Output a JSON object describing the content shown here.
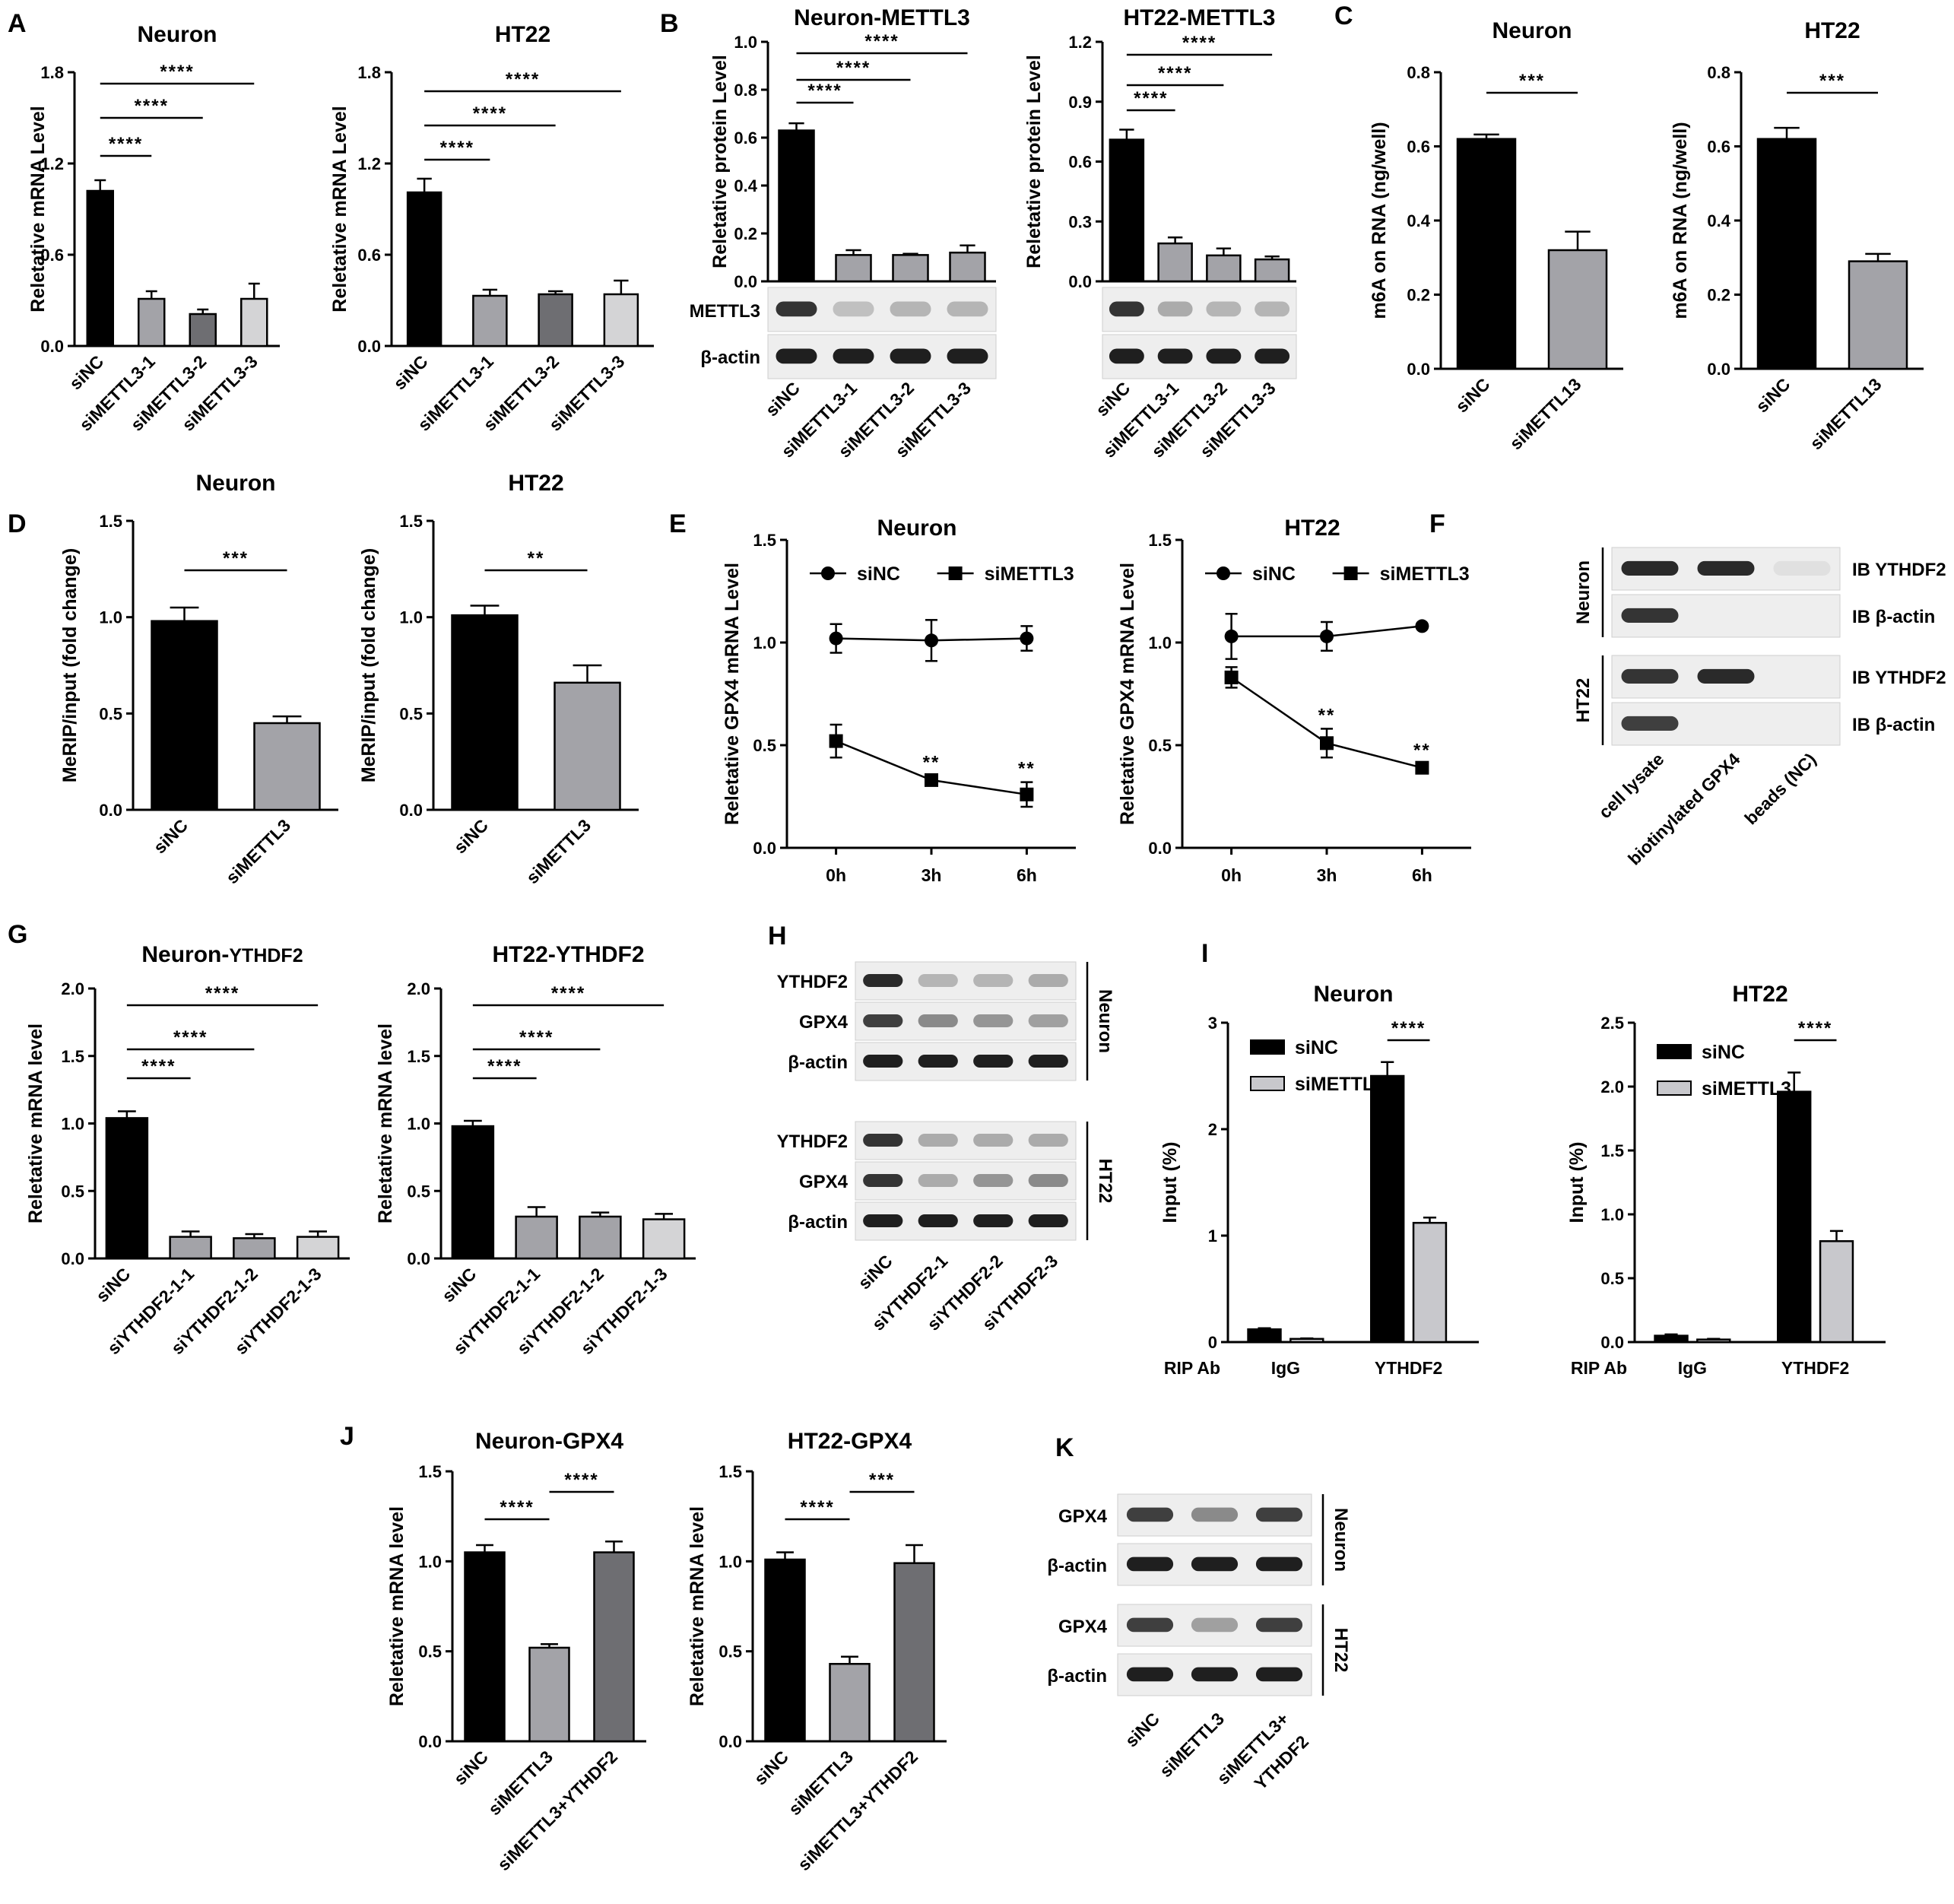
{
  "panel_labels": [
    "A",
    "B",
    "C",
    "D",
    "E",
    "F",
    "G",
    "H",
    "I",
    "J",
    "K"
  ],
  "colors": {
    "black": "#000000",
    "gray1": "#a3a3a8",
    "gray2": "#6e6e72",
    "gray3": "#d4d4d6",
    "gray_light": "#c8c8cc"
  },
  "chart_data": [
    {
      "id": "A1",
      "type": "bar",
      "title": "Neuron",
      "ylabel": "Reletative mRNA Level",
      "ylim": [
        0,
        1.8
      ],
      "yticks": [
        "0.0",
        "0.6",
        "1.2",
        "1.8"
      ],
      "categories": [
        "siNC",
        "siMETTL3-1",
        "siMETTL3-2",
        "siMETTL3-3"
      ],
      "values": [
        1.02,
        0.31,
        0.21,
        0.31
      ],
      "errors": [
        0.07,
        0.05,
        0.03,
        0.1
      ],
      "significance": [
        {
          "from": 0,
          "to": 1,
          "label": "****"
        },
        {
          "from": 0,
          "to": 2,
          "label": "****"
        },
        {
          "from": 0,
          "to": 3,
          "label": "****"
        }
      ]
    },
    {
      "id": "A2",
      "type": "bar",
      "title": "HT22",
      "ylabel": "Reletative mRNA Level",
      "ylim": [
        0,
        1.8
      ],
      "yticks": [
        "0.0",
        "0.6",
        "1.2",
        "1.8"
      ],
      "categories": [
        "siNC",
        "siMETTL3-1",
        "siMETTL3-2",
        "siMETTL3-3"
      ],
      "values": [
        1.01,
        0.33,
        0.34,
        0.34
      ],
      "errors": [
        0.09,
        0.04,
        0.02,
        0.09
      ],
      "significance": [
        {
          "from": 0,
          "to": 1,
          "label": "****"
        },
        {
          "from": 0,
          "to": 2,
          "label": "****"
        },
        {
          "from": 0,
          "to": 3,
          "label": "****"
        }
      ]
    },
    {
      "id": "B1",
      "type": "bar",
      "title": "Neuron-METTL3",
      "ylabel": "Reletative protein Level",
      "ylim": [
        0,
        1.0
      ],
      "yticks": [
        "0.0",
        "0.2",
        "0.4",
        "0.6",
        "0.8",
        "1.0"
      ],
      "categories": [
        "siNC",
        "siMETTL3-1",
        "siMETTL3-2",
        "siMETTL3-3"
      ],
      "values": [
        0.63,
        0.11,
        0.11,
        0.12
      ],
      "errors": [
        0.03,
        0.02,
        0.005,
        0.03
      ],
      "significance": [
        {
          "from": 0,
          "to": 1,
          "label": "****"
        },
        {
          "from": 0,
          "to": 2,
          "label": "****"
        },
        {
          "from": 0,
          "to": 3,
          "label": "****"
        }
      ]
    },
    {
      "id": "B2",
      "type": "bar",
      "title": "HT22-METTL3",
      "ylabel": "Reletative protein Level",
      "ylim": [
        0,
        1.2
      ],
      "yticks": [
        "0.0",
        "0.3",
        "0.6",
        "0.9",
        "1.2"
      ],
      "categories": [
        "siNC",
        "siMETTL3-1",
        "siMETTL3-2",
        "siMETTL3-3"
      ],
      "values": [
        0.71,
        0.19,
        0.13,
        0.11
      ],
      "errors": [
        0.05,
        0.03,
        0.035,
        0.015
      ],
      "significance": [
        {
          "from": 0,
          "to": 1,
          "label": "****"
        },
        {
          "from": 0,
          "to": 2,
          "label": "****"
        },
        {
          "from": 0,
          "to": 3,
          "label": "****"
        }
      ]
    },
    {
      "id": "C1",
      "type": "bar",
      "title": "Neuron",
      "ylabel": "m6A on RNA (ng/well)",
      "ylim": [
        0,
        0.8
      ],
      "yticks": [
        "0.0",
        "0.2",
        "0.4",
        "0.6",
        "0.8"
      ],
      "categories": [
        "siNC",
        "siMETTL13"
      ],
      "values": [
        0.62,
        0.32
      ],
      "errors": [
        0.012,
        0.05
      ],
      "significance": [
        {
          "from": 0,
          "to": 1,
          "label": "***"
        }
      ]
    },
    {
      "id": "C2",
      "type": "bar",
      "title": "HT22",
      "ylabel": "m6A on RNA (ng/well)",
      "ylim": [
        0,
        0.8
      ],
      "yticks": [
        "0.0",
        "0.2",
        "0.4",
        "0.6",
        "0.8"
      ],
      "categories": [
        "siNC",
        "siMETTL13"
      ],
      "values": [
        0.62,
        0.29
      ],
      "errors": [
        0.03,
        0.02
      ],
      "significance": [
        {
          "from": 0,
          "to": 1,
          "label": "***"
        }
      ]
    },
    {
      "id": "D1",
      "type": "bar",
      "title": "Neuron",
      "ylabel": "MeRIP/input (fold change)",
      "ylim": [
        0,
        1.5
      ],
      "yticks": [
        "0.0",
        "0.5",
        "1.0",
        "1.5"
      ],
      "categories": [
        "siNC",
        "siMETTL3"
      ],
      "values": [
        0.98,
        0.45
      ],
      "errors": [
        0.07,
        0.035
      ],
      "significance": [
        {
          "from": 0,
          "to": 1,
          "label": "***"
        }
      ]
    },
    {
      "id": "D2",
      "type": "bar",
      "title": "HT22",
      "ylabel": "MeRIP/input (fold change)",
      "ylim": [
        0,
        1.5
      ],
      "yticks": [
        "0.0",
        "0.5",
        "1.0",
        "1.5"
      ],
      "categories": [
        "siNC",
        "siMETTL3"
      ],
      "values": [
        1.01,
        0.66
      ],
      "errors": [
        0.05,
        0.09
      ],
      "significance": [
        {
          "from": 0,
          "to": 1,
          "label": "**"
        }
      ]
    },
    {
      "id": "E1",
      "type": "line",
      "title": "Neuron",
      "ylabel": "Reletative GPX4 mRNA Level",
      "ylim": [
        0,
        1.5
      ],
      "yticks": [
        "0.0",
        "0.5",
        "1.0",
        "1.5"
      ],
      "x": [
        "0h",
        "3h",
        "6h"
      ],
      "series": [
        {
          "name": "siNC",
          "marker": "circle",
          "values": [
            1.02,
            1.01,
            1.02
          ],
          "errors": [
            0.07,
            0.1,
            0.06
          ]
        },
        {
          "name": "siMETTL3",
          "marker": "square",
          "values": [
            0.52,
            0.33,
            0.26
          ],
          "errors": [
            0.08,
            0.02,
            0.06
          ]
        }
      ],
      "annotations": [
        {
          "x": 1,
          "label": "**"
        },
        {
          "x": 2,
          "label": "**"
        }
      ]
    },
    {
      "id": "E2",
      "type": "line",
      "title": "HT22",
      "ylabel": "Reletative GPX4 mRNA Level",
      "ylim": [
        0,
        1.5
      ],
      "yticks": [
        "0.0",
        "0.5",
        "1.0",
        "1.5"
      ],
      "x": [
        "0h",
        "3h",
        "6h"
      ],
      "series": [
        {
          "name": "siNC",
          "marker": "circle",
          "values": [
            1.03,
            1.03,
            1.08
          ],
          "errors": [
            0.11,
            0.07,
            0.01
          ]
        },
        {
          "name": "siMETTL3",
          "marker": "square",
          "values": [
            0.83,
            0.51,
            0.39
          ],
          "errors": [
            0.05,
            0.07,
            0.02
          ]
        }
      ],
      "annotations": [
        {
          "x": 1,
          "label": "**"
        },
        {
          "x": 2,
          "label": "**"
        }
      ]
    },
    {
      "id": "G1",
      "type": "bar",
      "title": "Neuron-",
      "title_suffix": "YTHDF2",
      "ylabel": "Reletative mRNA level",
      "ylim": [
        0,
        2.0
      ],
      "yticks": [
        "0.0",
        "0.5",
        "1.0",
        "1.5",
        "2.0"
      ],
      "categories": [
        "siNC",
        "siYTHDF2-1-1",
        "siYTHDF2-1-2",
        "siYTHDF2-1-3"
      ],
      "values": [
        1.04,
        0.16,
        0.15,
        0.16
      ],
      "errors": [
        0.05,
        0.04,
        0.03,
        0.04
      ],
      "significance": [
        {
          "from": 0,
          "to": 1,
          "label": "****"
        },
        {
          "from": 0,
          "to": 2,
          "label": "****"
        },
        {
          "from": 0,
          "to": 3,
          "label": "****"
        }
      ]
    },
    {
      "id": "G2",
      "type": "bar",
      "title": "HT22-YTHDF2",
      "ylabel": "Reletative mRNA level",
      "ylim": [
        0,
        2.0
      ],
      "yticks": [
        "0.0",
        "0.5",
        "1.0",
        "1.5",
        "2.0"
      ],
      "categories": [
        "siNC",
        "siYTHDF2-1-1",
        "siYTHDF2-1-2",
        "siYTHDF2-1-3"
      ],
      "values": [
        0.98,
        0.31,
        0.31,
        0.29
      ],
      "errors": [
        0.04,
        0.07,
        0.03,
        0.04
      ],
      "significance": [
        {
          "from": 0,
          "to": 1,
          "label": "****"
        },
        {
          "from": 0,
          "to": 2,
          "label": "****"
        },
        {
          "from": 0,
          "to": 3,
          "label": "****"
        }
      ]
    },
    {
      "id": "I1",
      "type": "bar",
      "title": "Neuron",
      "ylabel": "Input (%)",
      "ylim": [
        0,
        3
      ],
      "yticks": [
        "0",
        "1",
        "2",
        "3"
      ],
      "x_prefix": "RIP Ab",
      "categories": [
        "IgG",
        "YTHDF2"
      ],
      "series": [
        {
          "name": "siNC",
          "values": [
            0.12,
            2.5
          ],
          "errors": [
            0.01,
            0.13
          ]
        },
        {
          "name": "siMETTL3",
          "values": [
            0.03,
            1.12
          ],
          "errors": [
            0.005,
            0.05
          ]
        }
      ],
      "significance": [
        {
          "group": 1,
          "label": "****"
        }
      ]
    },
    {
      "id": "I2",
      "type": "bar",
      "title": "HT22",
      "ylabel": "Input (%)",
      "ylim": [
        0,
        2.5
      ],
      "yticks": [
        "0.0",
        "0.5",
        "1.0",
        "1.5",
        "2.0",
        "2.5"
      ],
      "x_prefix": "RIP Ab",
      "categories": [
        "IgG",
        "YTHDF2"
      ],
      "series": [
        {
          "name": "siNC",
          "values": [
            0.05,
            1.96
          ],
          "errors": [
            0.01,
            0.15
          ]
        },
        {
          "name": "siMETTL3",
          "values": [
            0.02,
            0.79
          ],
          "errors": [
            0.005,
            0.08
          ]
        }
      ],
      "significance": [
        {
          "group": 1,
          "label": "****"
        }
      ]
    },
    {
      "id": "J1",
      "type": "bar",
      "title": "Neuron-GPX4",
      "ylabel": "Reletative mRNA level",
      "ylim": [
        0,
        1.5
      ],
      "yticks": [
        "0.0",
        "0.5",
        "1.0",
        "1.5"
      ],
      "categories": [
        "siNC",
        "siMETTL3",
        "siMETTL3+YTHDF2"
      ],
      "values": [
        1.05,
        0.52,
        1.05
      ],
      "errors": [
        0.04,
        0.02,
        0.06
      ],
      "significance": [
        {
          "from": 0,
          "to": 1,
          "label": "****"
        },
        {
          "from": 1,
          "to": 2,
          "label": "****"
        }
      ]
    },
    {
      "id": "J2",
      "type": "bar",
      "title": "HT22-GPX4",
      "ylabel": "Reletative mRNA level",
      "ylim": [
        0,
        1.5
      ],
      "yticks": [
        "0.0",
        "0.5",
        "1.0",
        "1.5"
      ],
      "categories": [
        "siNC",
        "siMETTL3",
        "siMETTL3+YTHDF2"
      ],
      "values": [
        1.01,
        0.43,
        0.99
      ],
      "errors": [
        0.04,
        0.04,
        0.1
      ],
      "significance": [
        {
          "from": 0,
          "to": 1,
          "label": "****"
        },
        {
          "from": 1,
          "to": 2,
          "label": "***"
        }
      ]
    }
  ],
  "blots": {
    "B1": {
      "rows": [
        "METTL3",
        "β-actin"
      ]
    },
    "B2": {
      "rows": [
        "",
        ""
      ]
    },
    "F": {
      "groups": [
        "Neuron",
        "HT22"
      ],
      "rows": [
        "IB YTHDF2",
        "IB β-actin",
        "IB YTHDF2",
        "IB β-actin"
      ],
      "lanes": [
        "cell lysate",
        "biotinylated GPX4",
        "beads (NC)"
      ]
    },
    "H": {
      "groups": [
        "Neuron",
        "HT22"
      ],
      "rows": [
        "YTHDF2",
        "GPX4",
        "β-actin",
        "YTHDF2",
        "GPX4",
        "β-actin"
      ],
      "lanes": [
        "siNC",
        "siYTHDF2-1",
        "siYTHDF2-2",
        "siYTHDF2-3"
      ]
    },
    "K": {
      "groups": [
        "Neuron",
        "HT22"
      ],
      "rows": [
        "GPX4",
        "β-actin",
        "GPX4",
        "β-actin"
      ],
      "lanes": [
        "siNC",
        "siMETTL3",
        "siMETTL3+",
        "YTHDF2"
      ]
    }
  }
}
